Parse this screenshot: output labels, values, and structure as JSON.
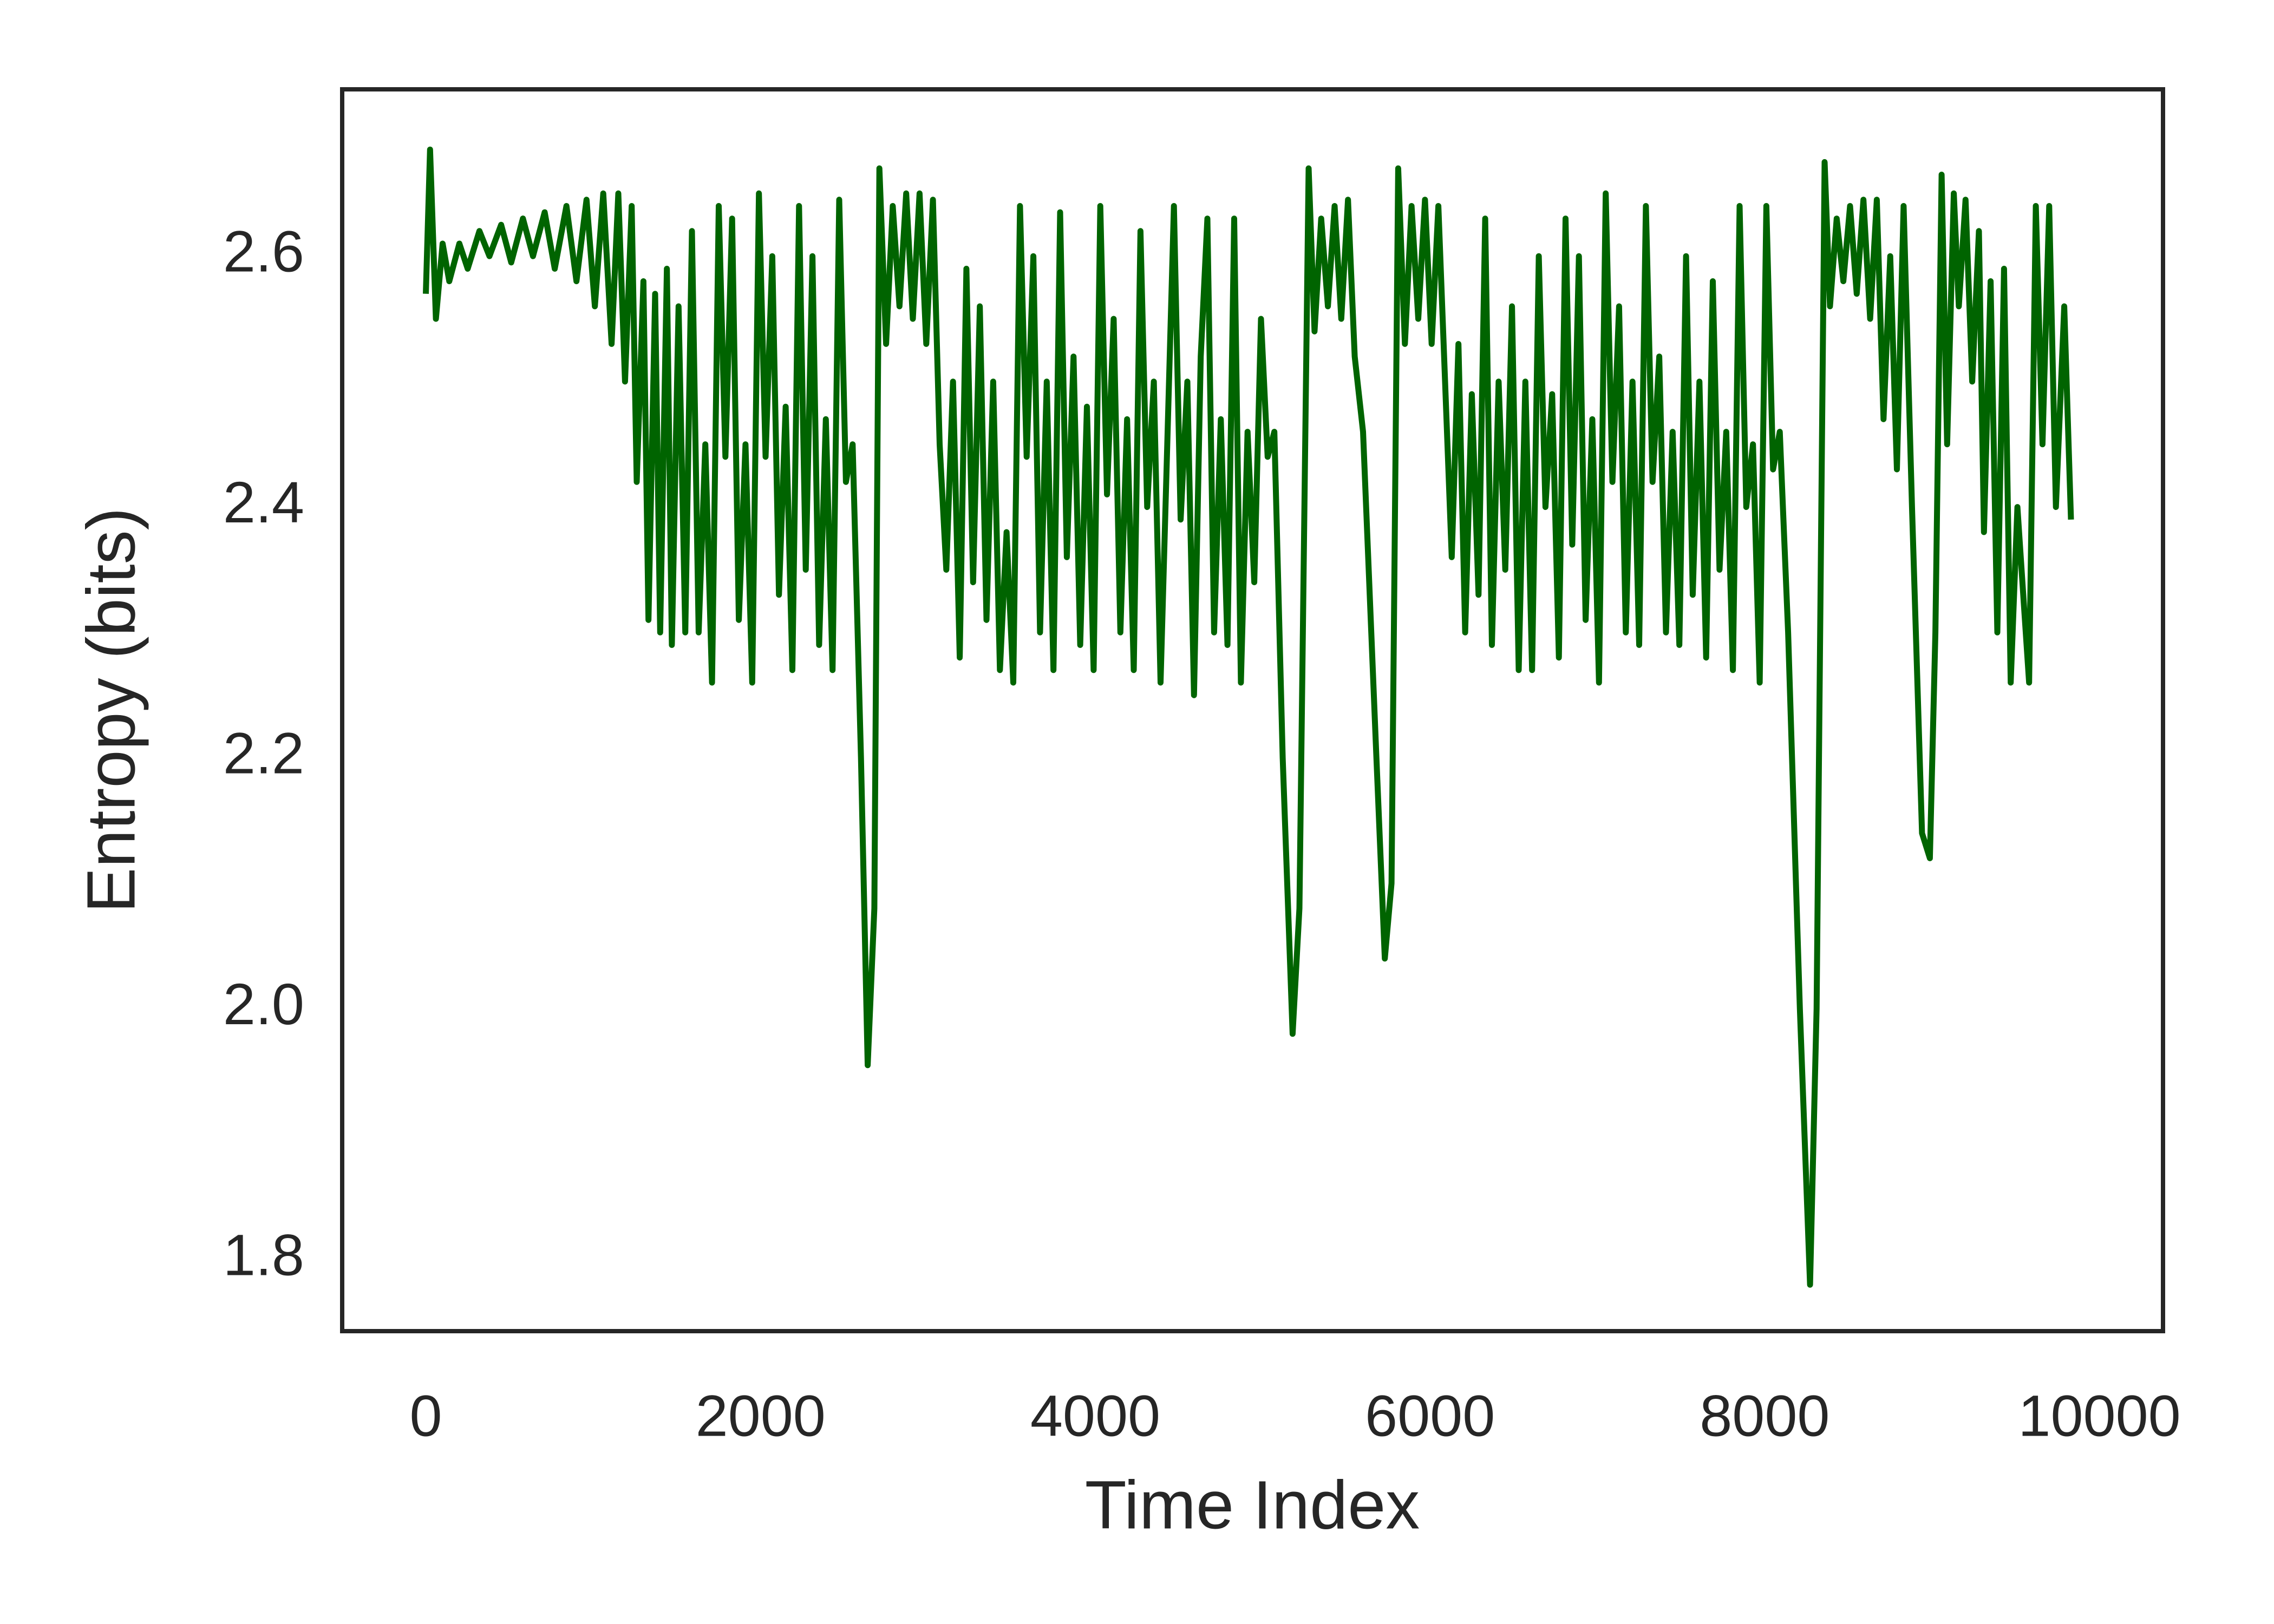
{
  "chart_data": {
    "type": "line",
    "x_label": "Time Index",
    "y_label": "Entropy (bits)",
    "x": [
      0,
      25,
      60,
      100,
      140,
      200,
      250,
      320,
      380,
      450,
      510,
      580,
      640,
      710,
      770,
      840,
      900,
      960,
      1010,
      1060,
      1110,
      1150,
      1190,
      1230,
      1260,
      1300,
      1330,
      1370,
      1400,
      1440,
      1470,
      1510,
      1550,
      1590,
      1630,
      1670,
      1710,
      1750,
      1790,
      1830,
      1870,
      1910,
      1950,
      1990,
      2030,
      2070,
      2110,
      2150,
      2190,
      2230,
      2270,
      2310,
      2350,
      2390,
      2430,
      2470,
      2510,
      2550,
      2600,
      2640,
      2680,
      2710,
      2750,
      2790,
      2830,
      2870,
      2910,
      2950,
      2990,
      3030,
      3070,
      3110,
      3150,
      3190,
      3230,
      3270,
      3310,
      3350,
      3390,
      3430,
      3470,
      3510,
      3550,
      3590,
      3630,
      3670,
      3710,
      3750,
      3790,
      3830,
      3870,
      3910,
      3950,
      3990,
      4030,
      4070,
      4110,
      4150,
      4190,
      4230,
      4270,
      4310,
      4350,
      4390,
      4430,
      4470,
      4510,
      4550,
      4590,
      4630,
      4670,
      4710,
      4750,
      4790,
      4830,
      4870,
      4910,
      4950,
      4990,
      5030,
      5070,
      5120,
      5179,
      5220,
      5275,
      5310,
      5350,
      5390,
      5430,
      5470,
      5510,
      5550,
      5600,
      5680,
      5730,
      5770,
      5810,
      5850,
      5890,
      5930,
      5970,
      6010,
      6050,
      6090,
      6130,
      6170,
      6210,
      6250,
      6290,
      6330,
      6370,
      6410,
      6450,
      6490,
      6530,
      6570,
      6610,
      6650,
      6690,
      6730,
      6770,
      6810,
      6850,
      6890,
      6930,
      6970,
      7010,
      7050,
      7090,
      7130,
      7170,
      7210,
      7250,
      7290,
      7330,
      7370,
      7410,
      7450,
      7490,
      7530,
      7570,
      7610,
      7650,
      7690,
      7730,
      7770,
      7810,
      7850,
      7890,
      7930,
      7970,
      8010,
      8050,
      8090,
      8140,
      8210,
      8271,
      8310,
      8358,
      8390,
      8430,
      8470,
      8510,
      8550,
      8590,
      8630,
      8670,
      8710,
      8750,
      8790,
      8830,
      8880,
      8940,
      8987,
      9020,
      9057,
      9090,
      9130,
      9160,
      9200,
      9240,
      9280,
      9310,
      9350,
      9390,
      9430,
      9470,
      9510,
      9550,
      9580,
      9620,
      9660,
      9700,
      9740,
      9790,
      9830
    ],
    "series": [
      {
        "color": "#006400",
        "values": [
          2.57,
          2.685,
          2.55,
          2.61,
          2.58,
          2.61,
          2.59,
          2.62,
          2.6,
          2.625,
          2.595,
          2.63,
          2.6,
          2.635,
          2.59,
          2.64,
          2.58,
          2.645,
          2.56,
          2.65,
          2.53,
          2.65,
          2.5,
          2.64,
          2.42,
          2.58,
          2.31,
          2.57,
          2.3,
          2.59,
          2.29,
          2.56,
          2.3,
          2.62,
          2.3,
          2.45,
          2.26,
          2.64,
          2.44,
          2.63,
          2.31,
          2.45,
          2.26,
          2.65,
          2.44,
          2.6,
          2.33,
          2.48,
          2.27,
          2.64,
          2.35,
          2.6,
          2.29,
          2.47,
          2.27,
          2.645,
          2.42,
          2.45,
          2.2,
          1.955,
          2.08,
          2.67,
          2.53,
          2.64,
          2.56,
          2.65,
          2.55,
          2.65,
          2.53,
          2.645,
          2.45,
          2.35,
          2.5,
          2.28,
          2.59,
          2.34,
          2.56,
          2.31,
          2.5,
          2.27,
          2.38,
          2.26,
          2.64,
          2.44,
          2.6,
          2.3,
          2.5,
          2.27,
          2.635,
          2.36,
          2.52,
          2.29,
          2.48,
          2.27,
          2.64,
          2.41,
          2.55,
          2.3,
          2.47,
          2.27,
          2.62,
          2.4,
          2.5,
          2.26,
          2.45,
          2.64,
          2.39,
          2.5,
          2.25,
          2.52,
          2.63,
          2.3,
          2.47,
          2.29,
          2.63,
          2.26,
          2.46,
          2.34,
          2.55,
          2.44,
          2.46,
          2.2,
          1.98,
          2.08,
          2.67,
          2.54,
          2.63,
          2.56,
          2.64,
          2.55,
          2.645,
          2.52,
          2.46,
          2.2,
          2.04,
          2.1,
          2.67,
          2.53,
          2.64,
          2.55,
          2.645,
          2.53,
          2.64,
          2.5,
          2.36,
          2.53,
          2.3,
          2.49,
          2.33,
          2.63,
          2.29,
          2.5,
          2.35,
          2.56,
          2.27,
          2.5,
          2.27,
          2.6,
          2.4,
          2.49,
          2.28,
          2.63,
          2.37,
          2.6,
          2.31,
          2.47,
          2.26,
          2.65,
          2.42,
          2.56,
          2.3,
          2.5,
          2.29,
          2.64,
          2.42,
          2.52,
          2.3,
          2.46,
          2.29,
          2.6,
          2.33,
          2.5,
          2.28,
          2.58,
          2.35,
          2.46,
          2.27,
          2.64,
          2.4,
          2.45,
          2.26,
          2.64,
          2.43,
          2.46,
          2.3,
          2.0,
          1.78,
          2.0,
          2.675,
          2.56,
          2.63,
          2.58,
          2.64,
          2.57,
          2.645,
          2.55,
          2.645,
          2.47,
          2.6,
          2.43,
          2.64,
          2.4,
          2.14,
          2.12,
          2.3,
          2.665,
          2.45,
          2.65,
          2.56,
          2.645,
          2.5,
          2.62,
          2.38,
          2.58,
          2.3,
          2.59,
          2.26,
          2.4,
          2.32,
          2.26,
          2.64,
          2.45,
          2.64,
          2.4,
          2.56,
          2.39
        ]
      }
    ],
    "xlim": [
      -500,
      10380
    ],
    "ylim": [
      1.743,
      2.733
    ],
    "xticks": [
      0,
      2000,
      4000,
      6000,
      8000,
      10000
    ],
    "yticks": [
      1.8,
      {
        "value": 2,
        "label": "2.0"
      },
      2.2,
      2.4,
      2.6
    ],
    "grid": false
  }
}
